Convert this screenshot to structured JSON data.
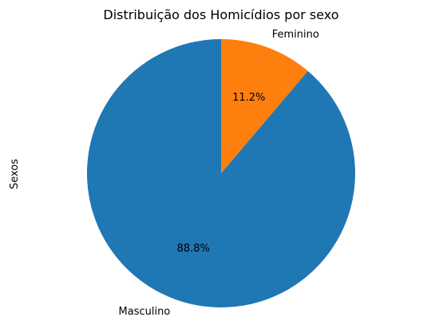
{
  "chart_data": {
    "type": "pie",
    "title": "Distribuição dos Homicídios por sexo",
    "ylabel": "Sexos",
    "start_angle_deg": 90,
    "direction": "counterclockwise",
    "slices": [
      {
        "label": "Masculino",
        "value": 88.8,
        "pct_label": "88.8%",
        "color": "#1f77b4"
      },
      {
        "label": "Feminino",
        "value": 11.2,
        "pct_label": "11.2%",
        "color": "#ff7f0e"
      }
    ]
  }
}
